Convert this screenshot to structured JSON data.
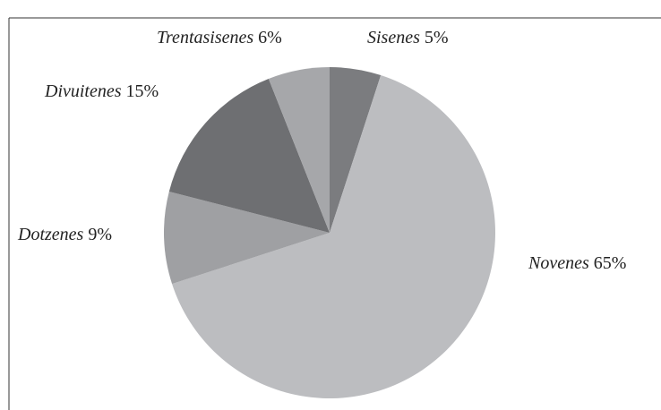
{
  "chart_data": {
    "type": "pie",
    "categories": [
      "Sisenes",
      "Novenes",
      "Dotzenes",
      "Divuitenes",
      "Trentasisenes"
    ],
    "values": [
      5,
      65,
      9,
      15,
      6
    ],
    "value_labels": [
      "5%",
      "65%",
      "9%",
      "15%",
      "6%"
    ],
    "colors": [
      "#7b7c7f",
      "#bcbdc0",
      "#9fa0a3",
      "#6e6f72",
      "#a6a7aa"
    ]
  }
}
